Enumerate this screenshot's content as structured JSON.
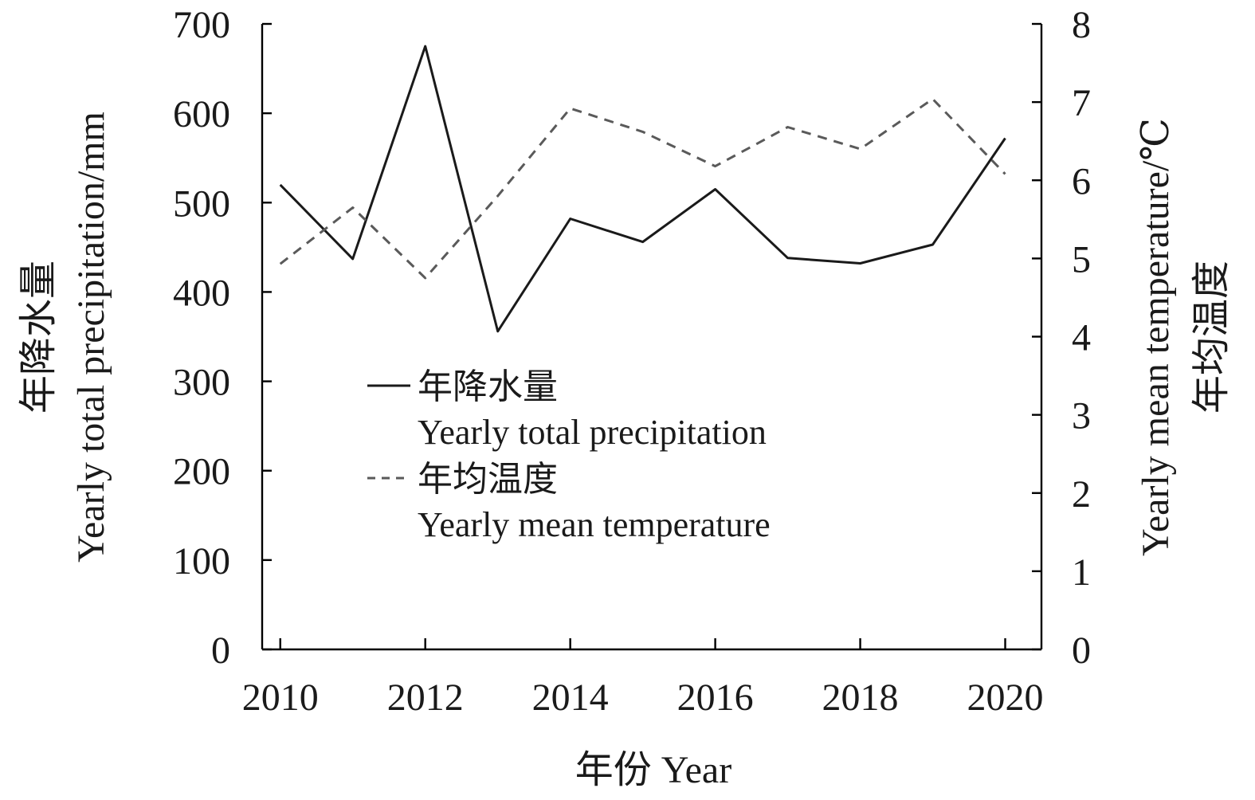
{
  "chart_data": {
    "type": "line",
    "x": [
      2010,
      2011,
      2012,
      2013,
      2014,
      2015,
      2016,
      2017,
      2018,
      2019,
      2020
    ],
    "x_ticks": [
      "2010",
      "2012",
      "2014",
      "2016",
      "2018",
      "2020"
    ],
    "xlabel": "年份 Year",
    "xlim": [
      2009.75,
      2020.5
    ],
    "ylabel_left_cn": "年降水量",
    "ylabel_left_en": "Yearly total precipitation/mm",
    "ylim_left": [
      0,
      700
    ],
    "yticks_left": [
      "0",
      "100",
      "200",
      "300",
      "400",
      "500",
      "600",
      "700"
    ],
    "ylabel_right_cn": "年均温度",
    "ylabel_right_en": "Yearly mean temperature/℃",
    "ylim_right": [
      0,
      8
    ],
    "yticks_right": [
      "0",
      "1",
      "2",
      "3",
      "4",
      "5",
      "6",
      "7",
      "8"
    ],
    "series": [
      {
        "name_cn": "年降水量",
        "name_en": "Yearly total precipitation",
        "axis": "left",
        "style": "solid",
        "color": "#1a1a1a",
        "values": [
          520,
          437,
          675,
          356,
          482,
          456,
          515,
          438,
          432,
          453,
          572
        ]
      },
      {
        "name_cn": "年均温度",
        "name_en": "Yearly mean temperature",
        "axis": "right",
        "style": "dashed",
        "color": "#5a5a5a",
        "values": [
          4.93,
          5.65,
          4.75,
          5.8,
          6.92,
          6.62,
          6.18,
          6.68,
          6.4,
          7.04,
          6.08
        ]
      }
    ],
    "legend_position": "center-left",
    "grid": false
  }
}
